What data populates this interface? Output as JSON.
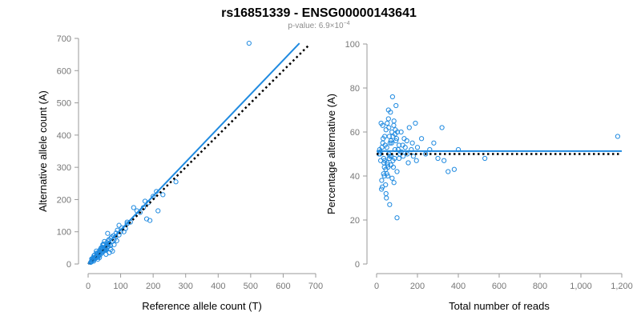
{
  "header": {
    "title": "rs16851339 - ENSG00000143641",
    "pvalue_prefix": "p-value: 6.9×10",
    "pvalue_exponent": "−4"
  },
  "colors": {
    "points": "#1f8ae0",
    "fit": "#1f8ae0",
    "reference": "#000000"
  },
  "chart_data": [
    {
      "type": "scatter",
      "xlabel": "Reference allele count (T)",
      "ylabel": "Alternative allele count (A)",
      "xlim": [
        0,
        700
      ],
      "ylim": [
        0,
        700
      ],
      "xticks": [
        0,
        100,
        200,
        300,
        400,
        500,
        600,
        700
      ],
      "yticks": [
        0,
        100,
        200,
        300,
        400,
        500,
        600,
        700
      ],
      "xtick_labels": [
        "0",
        "100",
        "200",
        "300",
        "400",
        "500",
        "600",
        "700"
      ],
      "ytick_labels": [
        "0",
        "100",
        "200",
        "300",
        "400",
        "500",
        "600",
        "700"
      ],
      "fit_line": {
        "x": [
          0,
          650
        ],
        "y": [
          0,
          685
        ]
      },
      "reference_line": {
        "x": [
          0,
          680
        ],
        "y": [
          0,
          680
        ]
      },
      "points": {
        "x": [
          495,
          270,
          230,
          215,
          175,
          180,
          190,
          170,
          150,
          130,
          120,
          115,
          100,
          95,
          85,
          80,
          75,
          70,
          68,
          65,
          62,
          60,
          58,
          55,
          52,
          50,
          48,
          45,
          42,
          40,
          38,
          35,
          33,
          30,
          28,
          25,
          22,
          20,
          18,
          15,
          12,
          10,
          8,
          60,
          70,
          45,
          55,
          35,
          40,
          25,
          30,
          50,
          65,
          20,
          80,
          90,
          110,
          140,
          160,
          185,
          200,
          210,
          120,
          95,
          75,
          52,
          44,
          36,
          28,
          24,
          18,
          14,
          11,
          9,
          16,
          26,
          34,
          46,
          58,
          72,
          86,
          104,
          64,
          38,
          48,
          22,
          30,
          42,
          56,
          12,
          17,
          27,
          33,
          41,
          53,
          61,
          69,
          78,
          88
        ],
        "y": [
          685,
          255,
          215,
          165,
          195,
          140,
          135,
          175,
          165,
          130,
          125,
          110,
          100,
          90,
          85,
          75,
          70,
          80,
          60,
          65,
          55,
          60,
          50,
          55,
          45,
          50,
          40,
          45,
          35,
          40,
          30,
          35,
          25,
          30,
          20,
          25,
          18,
          20,
          15,
          12,
          10,
          8,
          5,
          95,
          45,
          60,
          30,
          20,
          50,
          40,
          15,
          70,
          35,
          28,
          60,
          105,
          100,
          175,
          160,
          190,
          210,
          225,
          130,
          120,
          40,
          48,
          52,
          42,
          32,
          22,
          26,
          12,
          16,
          6,
          20,
          34,
          38,
          58,
          66,
          84,
          96,
          112,
          76,
          46,
          62,
          18,
          24,
          36,
          44,
          14,
          9,
          29,
          27,
          49,
          43,
          71,
          57,
          88,
          72
        ]
      }
    },
    {
      "type": "scatter",
      "xlabel": "Total number of reads",
      "ylabel": "Percentage alternative (A)",
      "xlim": [
        0,
        1200
      ],
      "ylim": [
        0,
        100
      ],
      "xticks": [
        0,
        200,
        400,
        600,
        800,
        1000,
        1200
      ],
      "yticks": [
        0,
        20,
        40,
        60,
        80,
        100
      ],
      "xtick_labels": [
        "0",
        "200",
        "400",
        "600",
        "800",
        "1,000",
        "1,200"
      ],
      "ytick_labels": [
        "0",
        "20",
        "40",
        "60",
        "80",
        "100"
      ],
      "fit_line": {
        "x": [
          0,
          1200
        ],
        "y": [
          51.3,
          51.3
        ]
      },
      "reference_line": {
        "x": [
          0,
          1200
        ],
        "y": [
          50,
          50
        ]
      },
      "points": {
        "x": [
          1180,
          530,
          400,
          380,
          350,
          330,
          320,
          300,
          280,
          260,
          240,
          220,
          200,
          195,
          190,
          180,
          175,
          160,
          150,
          140,
          130,
          120,
          110,
          105,
          100,
          95,
          90,
          85,
          80,
          75,
          70,
          65,
          60,
          55,
          50,
          45,
          40,
          35,
          30,
          25,
          20,
          15,
          12,
          100,
          95,
          85,
          78,
          72,
          64,
          58,
          52,
          46,
          38,
          32,
          28,
          22,
          18,
          70,
          90,
          110,
          60,
          50,
          40,
          30,
          80,
          120,
          135,
          155,
          170,
          88,
          66,
          44,
          26,
          102,
          76,
          56,
          36,
          24,
          16,
          98,
          84,
          68,
          54,
          42,
          34,
          48,
          62,
          74,
          92,
          114,
          128,
          148,
          62,
          58,
          46,
          52,
          38,
          82
        ],
        "y": [
          58,
          48,
          52,
          43,
          42,
          47,
          62,
          48,
          55,
          52,
          50,
          57,
          53,
          47,
          64,
          49,
          55,
          62,
          50,
          53,
          49,
          60,
          48,
          52,
          21,
          72,
          52,
          65,
          47,
          60,
          56,
          49,
          62,
          40,
          53,
          43,
          58,
          48,
          55,
          38,
          47,
          52,
          50,
          42,
          56,
          37,
          76,
          49,
          27,
          66,
          46,
          61,
          44,
          57,
          35,
          64,
          51,
          45,
          59,
          54,
          50,
          41,
          47,
          63,
          58,
          51,
          57,
          46,
          52,
          48,
          55,
          36,
          53,
          60,
          39,
          44,
          46,
          34,
          50,
          57,
          63,
          69,
          45,
          54,
          41,
          30,
          48,
          55,
          61,
          50,
          54,
          56,
          58,
          70,
          32,
          64,
          40,
          44
        ]
      }
    }
  ]
}
